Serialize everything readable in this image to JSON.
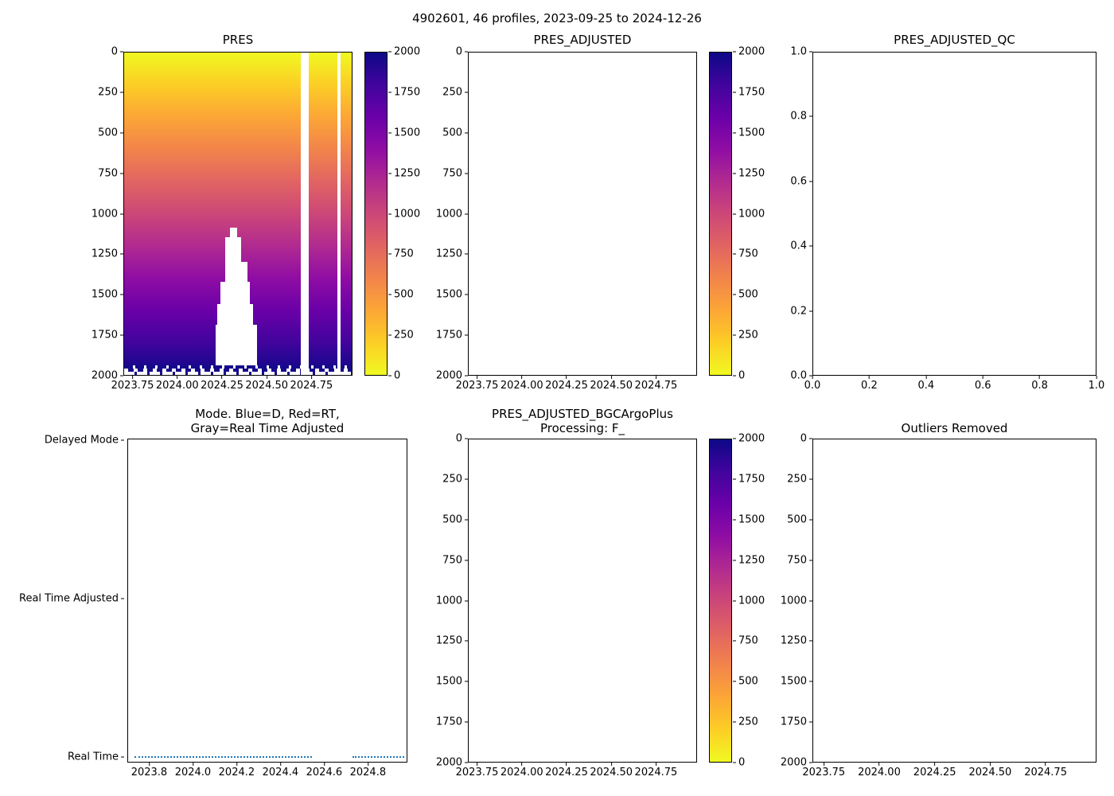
{
  "figure": {
    "suptitle": "4902601, 46 profiles, 2023-09-25 to 2024-12-26",
    "background": "#ffffff"
  },
  "colors": {
    "colormap_surface": "#f0f921",
    "colormap_deep": "#0d0887",
    "mode_line_blue": "#1f77b4",
    "axis": "#000000"
  },
  "panels": {
    "pres": {
      "title": "PRES",
      "yticks": [
        "0",
        "250",
        "500",
        "750",
        "1000",
        "1250",
        "1500",
        "1750",
        "2000"
      ],
      "xticks": [
        "2023.75",
        "2024.00",
        "2024.25",
        "2024.50",
        "2024.75"
      ],
      "cbticks": [
        "2000",
        "1750",
        "1500",
        "1250",
        "1000",
        "750",
        "500",
        "250",
        "0"
      ]
    },
    "pres_adjusted": {
      "title": "PRES_ADJUSTED",
      "yticks": [
        "0",
        "250",
        "500",
        "750",
        "1000",
        "1250",
        "1500",
        "1750",
        "2000"
      ],
      "xticks": [
        "2023.75",
        "2024.00",
        "2024.25",
        "2024.50",
        "2024.75"
      ],
      "cbticks": [
        "2000",
        "1750",
        "1500",
        "1250",
        "1000",
        "750",
        "500",
        "250",
        "0"
      ]
    },
    "qc": {
      "title": "PRES_ADJUSTED_QC",
      "yticks": [
        "1.0",
        "0.8",
        "0.6",
        "0.4",
        "0.2",
        "0.0"
      ],
      "xticks": [
        "0.0",
        "0.2",
        "0.4",
        "0.6",
        "0.8",
        "1.0"
      ]
    },
    "mode": {
      "title_line1": "Mode. Blue=D, Red=RT,",
      "title_line2": "Gray=Real Time Adjusted",
      "yticks": [
        "Delayed Mode",
        "Real Time Adjusted",
        "Real Time"
      ],
      "xticks": [
        "2023.8",
        "2024.0",
        "2024.2",
        "2024.4",
        "2024.6",
        "2024.8"
      ]
    },
    "bgc": {
      "title_line1": "PRES_ADJUSTED_BGCArgoPlus",
      "title_line2": "Processing: F_",
      "yticks": [
        "0",
        "250",
        "500",
        "750",
        "1000",
        "1250",
        "1500",
        "1750",
        "2000"
      ],
      "xticks": [
        "2023.75",
        "2024.00",
        "2024.25",
        "2024.50",
        "2024.75"
      ],
      "cbticks": [
        "2000",
        "1750",
        "1500",
        "1250",
        "1000",
        "750",
        "500",
        "250",
        "0"
      ]
    },
    "outliers": {
      "title": "Outliers Removed",
      "yticks": [
        "0",
        "250",
        "500",
        "750",
        "1000",
        "1250",
        "1500",
        "1750",
        "2000"
      ],
      "xticks": [
        "2023.75",
        "2024.00",
        "2024.25",
        "2024.50",
        "2024.75"
      ]
    }
  },
  "chart_data": [
    {
      "type": "heatmap",
      "title": "PRES",
      "xlim": [
        2023.7,
        2024.98
      ],
      "ylim": [
        2000,
        0
      ],
      "xticks": [
        2023.75,
        2024.0,
        2024.25,
        2024.5,
        2024.75
      ],
      "yticks": [
        0,
        250,
        500,
        750,
        1000,
        1250,
        1500,
        1750,
        2000
      ],
      "grid": false,
      "colormap": "plasma reversed: 0 -> #f0f921 (yellow), 2000 -> #0d0887 (dark indigo)",
      "colorbar": {
        "min": 0,
        "max": 2000,
        "ticks": [
          0,
          250,
          500,
          750,
          1000,
          1250,
          1500,
          1750,
          2000
        ]
      },
      "values_description": "46 profiles from 2023-09-25 to 2024-12-26; PRES equals depth so every profile column shows a smooth vertical gradient from 0 at the surface to ~1950-2000 at the bottom",
      "missing_regions": [
        {
          "x": [
            2024.17,
            2024.35
          ],
          "depth": [
            1080,
            1960
          ],
          "shape": "stepped white block widening with depth"
        },
        {
          "x": [
            2024.69,
            2024.73
          ],
          "depth": [
            0,
            2000
          ],
          "shape": "full-depth vertical white stripe"
        },
        {
          "x": [
            2024.89,
            2024.91
          ],
          "depth": [
            0,
            2000
          ],
          "shape": "narrow full-depth vertical white stripe"
        },
        {
          "note": "profile maximum depths vary between ~1950 and ~2000 leaving a jagged white band along the bottom edge"
        }
      ]
    },
    {
      "type": "heatmap",
      "title": "PRES_ADJUSTED",
      "xlim": [
        2023.7,
        2024.98
      ],
      "ylim": [
        2000,
        0
      ],
      "xticks": [
        2023.75,
        2024.0,
        2024.25,
        2024.5,
        2024.75
      ],
      "yticks": [
        0,
        250,
        500,
        750,
        1000,
        1250,
        1500,
        1750,
        2000
      ],
      "grid": false,
      "colorbar": {
        "min": 0,
        "max": 2000,
        "ticks": [
          0,
          250,
          500,
          750,
          1000,
          1250,
          1500,
          1750,
          2000
        ]
      },
      "values_description": "empty axes - no adjusted data plotted"
    },
    {
      "type": "scatter",
      "title": "PRES_ADJUSTED_QC",
      "xlim": [
        0.0,
        1.0
      ],
      "ylim": [
        0.0,
        1.0
      ],
      "xticks": [
        0.0,
        0.2,
        0.4,
        0.6,
        0.8,
        1.0
      ],
      "yticks": [
        0.0,
        0.2,
        0.4,
        0.6,
        0.8,
        1.0
      ],
      "grid": false,
      "values_description": "empty axes - no QC flags plotted"
    },
    {
      "type": "line",
      "title": "Mode. Blue=D, Red=RT, Gray=Real Time Adjusted",
      "xlim": [
        2023.7,
        2024.98
      ],
      "xticks": [
        2023.8,
        2024.0,
        2024.2,
        2024.4,
        2024.6,
        2024.8
      ],
      "y_categories_top_to_bottom": [
        "Delayed Mode",
        "Real Time Adjusted",
        "Real Time"
      ],
      "grid": false,
      "series": [
        {
          "name": "processing mode",
          "color": "#1f77b4",
          "style": "dotted",
          "y": "Real Time",
          "segments_x": [
            [
              2023.73,
              2024.54
            ],
            [
              2024.73,
              2024.97
            ]
          ]
        }
      ]
    },
    {
      "type": "heatmap",
      "title": "PRES_ADJUSTED_BGCArgoPlus Processing: F_",
      "xlim": [
        2023.7,
        2024.98
      ],
      "ylim": [
        2000,
        0
      ],
      "xticks": [
        2023.75,
        2024.0,
        2024.25,
        2024.5,
        2024.75
      ],
      "yticks": [
        0,
        250,
        500,
        750,
        1000,
        1250,
        1500,
        1750,
        2000
      ],
      "grid": false,
      "colorbar": {
        "min": 0,
        "max": 2000,
        "ticks": [
          0,
          250,
          500,
          750,
          1000,
          1250,
          1500,
          1750,
          2000
        ]
      },
      "values_description": "empty axes - no BGC-processed data plotted"
    },
    {
      "type": "heatmap",
      "title": "Outliers Removed",
      "xlim": [
        2023.7,
        2024.98
      ],
      "ylim": [
        2000,
        0
      ],
      "xticks": [
        2023.75,
        2024.0,
        2024.25,
        2024.5,
        2024.75
      ],
      "yticks": [
        0,
        250,
        500,
        750,
        1000,
        1250,
        1500,
        1750,
        2000
      ],
      "grid": false,
      "values_description": "empty axes - no data plotted after outlier removal"
    }
  ]
}
